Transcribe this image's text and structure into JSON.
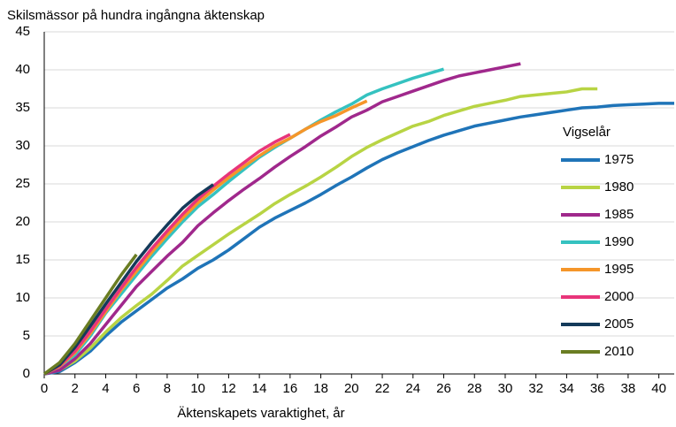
{
  "chart_data": {
    "type": "line",
    "y_label": "Skilsmässor på hundra ingångna äktenskap",
    "x_label": "Äktenskapets varaktighet, år",
    "legend_title": "Vigselår",
    "legend": "right",
    "grid": true,
    "xlim": [
      0,
      41
    ],
    "ylim": [
      0,
      45
    ],
    "xticks": [
      0,
      2,
      4,
      6,
      8,
      10,
      12,
      14,
      16,
      18,
      20,
      22,
      24,
      26,
      28,
      30,
      32,
      34,
      36,
      38,
      40
    ],
    "yticks": [
      0,
      5,
      10,
      15,
      20,
      25,
      30,
      35,
      40,
      45
    ],
    "x": [
      0,
      1,
      2,
      3,
      4,
      5,
      6,
      7,
      8,
      9,
      10,
      11,
      12,
      13,
      14,
      15,
      16,
      17,
      18,
      19,
      20,
      21,
      22,
      23,
      24,
      25,
      26,
      27,
      28,
      29,
      30,
      31,
      32,
      33,
      34,
      35,
      36,
      37,
      38,
      39,
      40,
      41
    ],
    "series": [
      {
        "name": "1975",
        "color": "#1f74b8",
        "values": [
          0,
          0.3,
          1.5,
          3,
          5,
          6.8,
          8.3,
          9.8,
          11.3,
          12.5,
          13.9,
          15,
          16.3,
          17.8,
          19.3,
          20.5,
          21.5,
          22.5,
          23.6,
          24.8,
          25.9,
          27.1,
          28.2,
          29.1,
          29.9,
          30.7,
          31.4,
          32,
          32.6,
          33,
          33.4,
          33.8,
          34.1,
          34.4,
          34.7,
          35,
          35.1,
          35.3,
          35.4,
          35.5,
          35.6,
          35.6
        ]
      },
      {
        "name": "1980",
        "color": "#b8d444",
        "values": [
          0,
          0.5,
          1.7,
          3.4,
          5.5,
          7.4,
          9,
          10.5,
          12.3,
          14.2,
          15.6,
          17,
          18.4,
          19.7,
          21,
          22.4,
          23.6,
          24.7,
          25.9,
          27.2,
          28.6,
          29.8,
          30.8,
          31.7,
          32.6,
          33.2,
          34,
          34.6,
          35.2,
          35.6,
          36,
          36.5,
          36.7,
          36.9,
          37.1,
          37.5,
          37.5,
          null,
          null,
          null,
          null,
          null
        ]
      },
      {
        "name": "1985",
        "color": "#a0288c",
        "values": [
          0,
          0.5,
          2,
          4,
          6.5,
          9,
          11.5,
          13.5,
          15.5,
          17.3,
          19.5,
          21.2,
          22.8,
          24.3,
          25.7,
          27.2,
          28.6,
          29.9,
          31.3,
          32.5,
          33.8,
          34.7,
          35.8,
          36.5,
          37.2,
          37.9,
          38.6,
          39.2,
          39.6,
          40,
          40.4,
          40.8,
          null,
          null,
          null,
          null,
          null,
          null,
          null,
          null,
          null,
          null
        ]
      },
      {
        "name": "1990",
        "color": "#35c2c0",
        "values": [
          0,
          1,
          2.5,
          5,
          8,
          10.5,
          13,
          15.5,
          17.8,
          20,
          22,
          23.6,
          25.3,
          26.9,
          28.5,
          29.8,
          31,
          32.2,
          33.4,
          34.5,
          35.5,
          36.7,
          37.5,
          38.2,
          38.9,
          39.5,
          40.1,
          null,
          null,
          null,
          null,
          null,
          null,
          null,
          null,
          null,
          null,
          null,
          null,
          null,
          null,
          null
        ]
      },
      {
        "name": "1995",
        "color": "#f5962a",
        "values": [
          0,
          1,
          2.8,
          5.3,
          8.2,
          11,
          13.5,
          16,
          18.3,
          20.5,
          22.5,
          24.2,
          25.8,
          27.3,
          28.7,
          30,
          31,
          32.2,
          33.2,
          34,
          35,
          35.9,
          null,
          null,
          null,
          null,
          null,
          null,
          null,
          null,
          null,
          null,
          null,
          null,
          null,
          null,
          null,
          null,
          null,
          null,
          null,
          null
        ]
      },
      {
        "name": "2000",
        "color": "#e8357a",
        "values": [
          0,
          1.1,
          3,
          5.6,
          8.5,
          11.3,
          14,
          16.5,
          18.8,
          21,
          23,
          24.7,
          26.3,
          27.8,
          29.3,
          30.5,
          31.5,
          null,
          null,
          null,
          null,
          null,
          null,
          null,
          null,
          null,
          null,
          null,
          null,
          null,
          null,
          null,
          null,
          null,
          null,
          null,
          null,
          null,
          null,
          null,
          null,
          null
        ]
      },
      {
        "name": "2005",
        "color": "#143a5a",
        "values": [
          0,
          1.2,
          3.5,
          6.3,
          9.2,
          12,
          14.8,
          17.3,
          19.6,
          21.8,
          23.5,
          24.9,
          null,
          null,
          null,
          null,
          null,
          null,
          null,
          null,
          null,
          null,
          null,
          null,
          null,
          null,
          null,
          null,
          null,
          null,
          null,
          null,
          null,
          null,
          null,
          null,
          null,
          null,
          null,
          null,
          null,
          null
        ]
      },
      {
        "name": "2010",
        "color": "#6a7d22",
        "values": [
          0,
          1.5,
          4,
          7,
          10,
          13,
          15.7,
          null,
          null,
          null,
          null,
          null,
          null,
          null,
          null,
          null,
          null,
          null,
          null,
          null,
          null,
          null,
          null,
          null,
          null,
          null,
          null,
          null,
          null,
          null,
          null,
          null,
          null,
          null,
          null,
          null,
          null,
          null,
          null,
          null,
          null,
          null
        ]
      }
    ]
  }
}
